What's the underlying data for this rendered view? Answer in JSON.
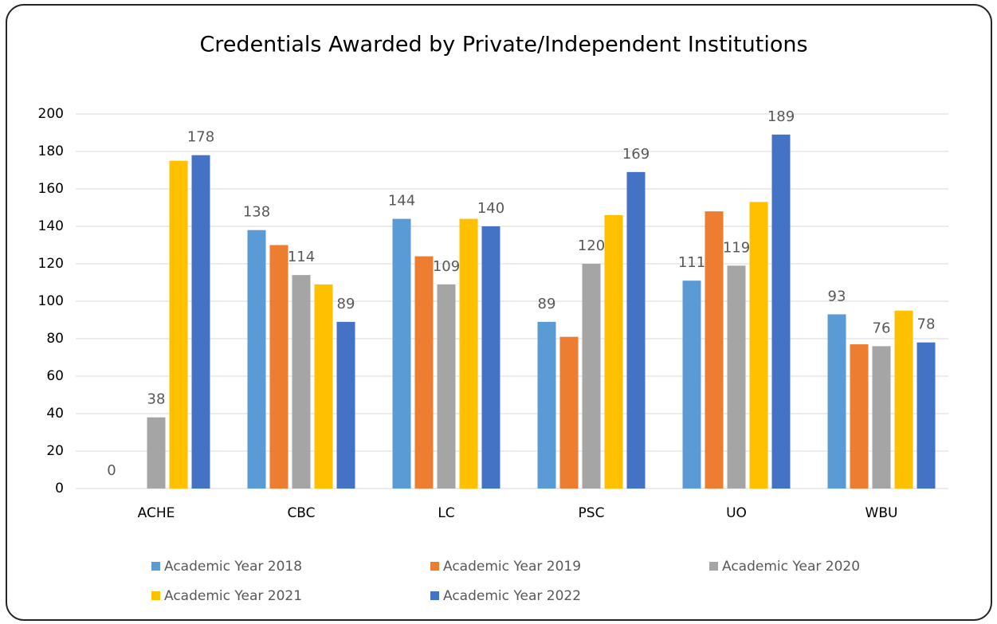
{
  "chart_data": {
    "type": "bar",
    "title": "Credentials Awarded by Private/Independent Institutions",
    "categories": [
      "ACHE",
      "CBC",
      "LC",
      "PSC",
      "UO",
      "WBU"
    ],
    "series": [
      {
        "name": "Academic Year 2018",
        "color": "#5b9bd5",
        "data_labels": true,
        "values": [
          0,
          138,
          144,
          89,
          111,
          93
        ]
      },
      {
        "name": "Academic Year 2019",
        "color": "#ed7d31",
        "data_labels": false,
        "values": [
          null,
          130,
          124,
          81,
          148,
          77
        ]
      },
      {
        "name": "Academic Year 2020",
        "color": "#a5a5a5",
        "data_labels": true,
        "values": [
          38,
          114,
          109,
          120,
          119,
          76
        ]
      },
      {
        "name": "Academic Year 2021",
        "color": "#ffc000",
        "data_labels": false,
        "values": [
          175,
          109,
          144,
          146,
          153,
          95
        ]
      },
      {
        "name": "Academic Year 2022",
        "color": "#4472c4",
        "data_labels": true,
        "values": [
          178,
          89,
          140,
          169,
          189,
          78
        ]
      }
    ],
    "ylim": [
      0,
      200
    ],
    "yticks": [
      0,
      20,
      40,
      60,
      80,
      100,
      120,
      140,
      160,
      180,
      200
    ],
    "grid": true,
    "legend": "bottom"
  }
}
